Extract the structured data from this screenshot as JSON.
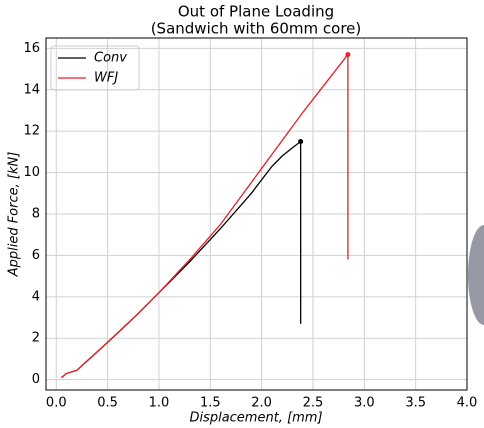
{
  "chart_data": {
    "type": "line",
    "title": [
      "Out of Plane Loading",
      "(Sandwich with 60mm core)"
    ],
    "x_label": "Displacement, [mm]",
    "y_label": "Applied Force, [kN]",
    "xlim": [
      -0.1,
      4.0
    ],
    "ylim": [
      -0.5,
      16.5
    ],
    "xticks": [
      {
        "value": 0,
        "label": "0.0"
      },
      0.5,
      {
        "value": 1,
        "label": "1.0"
      },
      1.5,
      {
        "value": 2,
        "label": "2.0"
      },
      2.5,
      {
        "value": 3,
        "label": "3.0"
      },
      3.5,
      {
        "value": 4,
        "label": "4.0"
      }
    ],
    "yticks": [
      0,
      2,
      4,
      6,
      8,
      10,
      12,
      14,
      16
    ],
    "grid": true,
    "legend": "upper left",
    "series": [
      {
        "name": "Conv",
        "color": "#000000",
        "x": [
          0.05,
          0.1,
          0.2,
          0.3,
          0.5,
          0.8,
          1.0,
          1.3,
          1.6,
          1.9,
          2.1,
          2.2,
          2.3,
          2.38,
          2.38
        ],
        "values": [
          0.1,
          0.3,
          0.45,
          0.9,
          1.8,
          3.2,
          4.2,
          5.7,
          7.3,
          9.0,
          10.3,
          10.8,
          11.2,
          11.5,
          2.7
        ]
      },
      {
        "name": "WFJ",
        "color": "#e8202a",
        "x": [
          0.05,
          0.1,
          0.2,
          0.3,
          0.5,
          0.8,
          1.0,
          1.3,
          1.6,
          2.0,
          2.4,
          2.84,
          2.84
        ],
        "values": [
          0.1,
          0.3,
          0.45,
          0.9,
          1.8,
          3.2,
          4.2,
          5.8,
          7.5,
          10.2,
          12.9,
          15.7,
          5.8
        ]
      }
    ]
  }
}
